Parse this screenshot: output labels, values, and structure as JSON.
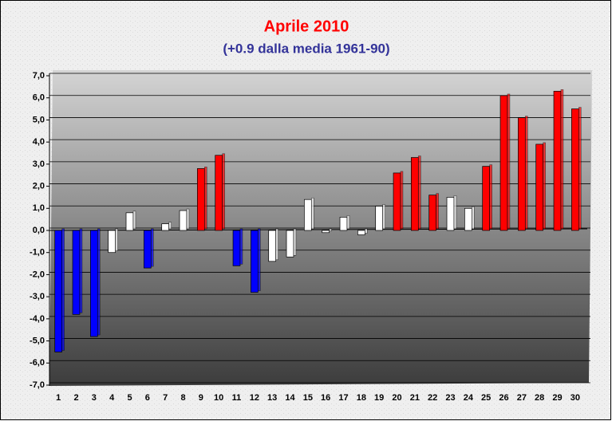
{
  "chart_data": {
    "type": "bar",
    "title": "Aprile 2010",
    "subtitle": "(+0.9 dalla media 1961-90)",
    "categories": [
      "1",
      "2",
      "3",
      "4",
      "5",
      "6",
      "7",
      "8",
      "9",
      "10",
      "11",
      "12",
      "13",
      "14",
      "15",
      "16",
      "17",
      "18",
      "19",
      "20",
      "21",
      "22",
      "23",
      "24",
      "25",
      "26",
      "27",
      "28",
      "29",
      "30"
    ],
    "values": [
      -5.5,
      -3.8,
      -4.8,
      -1.0,
      0.8,
      -1.7,
      0.3,
      0.9,
      2.8,
      3.4,
      -1.6,
      -2.8,
      -1.4,
      -1.2,
      1.4,
      -0.1,
      0.6,
      -0.2,
      1.1,
      2.6,
      3.3,
      1.6,
      1.5,
      1.0,
      2.9,
      6.1,
      5.1,
      3.9,
      6.3,
      5.5
    ],
    "colors": [
      "#0000ff",
      "#0000ff",
      "#0000ff",
      "#ffffff",
      "#ffffff",
      "#0000ff",
      "#ffffff",
      "#ffffff",
      "#ff0000",
      "#ff0000",
      "#0000ff",
      "#0000ff",
      "#ffffff",
      "#ffffff",
      "#ffffff",
      "#ffffff",
      "#ffffff",
      "#ffffff",
      "#ffffff",
      "#ff0000",
      "#ff0000",
      "#ff0000",
      "#ffffff",
      "#ffffff",
      "#ff0000",
      "#ff0000",
      "#ff0000",
      "#ff0000",
      "#ff0000",
      "#ff0000"
    ],
    "ylim": [
      -7,
      7
    ],
    "yticks": [
      {
        "value": 7,
        "label": "7,0"
      },
      {
        "value": 6,
        "label": "6,0"
      },
      {
        "value": 5,
        "label": "5,0"
      },
      {
        "value": 4,
        "label": "4,0"
      },
      {
        "value": 3,
        "label": "3,0"
      },
      {
        "value": 2,
        "label": "2,0"
      },
      {
        "value": 1,
        "label": "1,0"
      },
      {
        "value": 0,
        "label": "0,0"
      },
      {
        "value": -1,
        "label": "-1,0"
      },
      {
        "value": -2,
        "label": "-2,0"
      },
      {
        "value": -3,
        "label": "-3,0"
      },
      {
        "value": -4,
        "label": "-4,0"
      },
      {
        "value": -5,
        "label": "-5,0"
      },
      {
        "value": -6,
        "label": "-6,0"
      },
      {
        "value": -7,
        "label": "-7,0"
      }
    ],
    "grid": true
  }
}
